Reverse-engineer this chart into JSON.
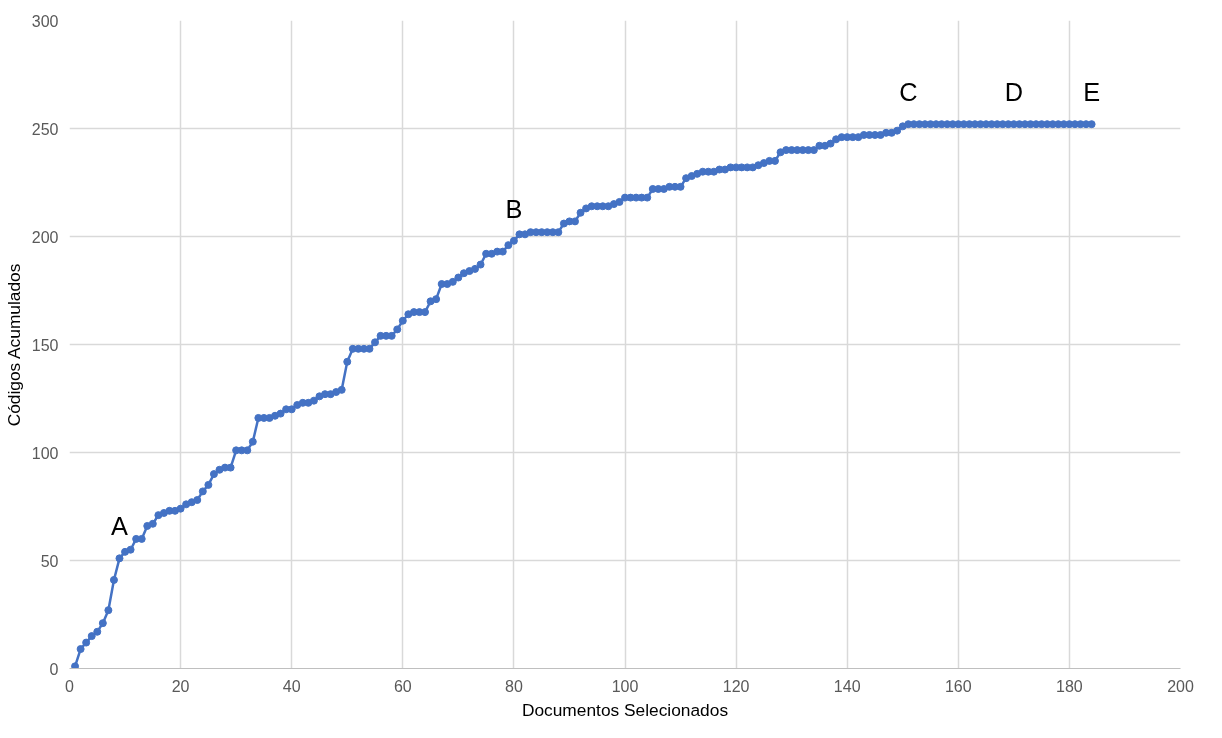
{
  "chart_data": {
    "type": "line",
    "xlabel": "Documentos Selecionados",
    "ylabel": "Códigos Acumulados",
    "x": [
      1,
      2,
      3,
      4,
      5,
      6,
      7,
      8,
      9,
      10,
      11,
      12,
      13,
      14,
      15,
      16,
      17,
      18,
      19,
      20,
      21,
      22,
      23,
      24,
      25,
      26,
      27,
      28,
      29,
      30,
      31,
      32,
      33,
      34,
      35,
      36,
      37,
      38,
      39,
      40,
      41,
      42,
      43,
      44,
      45,
      46,
      47,
      48,
      49,
      50,
      51,
      52,
      53,
      54,
      55,
      56,
      57,
      58,
      59,
      60,
      61,
      62,
      63,
      64,
      65,
      66,
      67,
      68,
      69,
      70,
      71,
      72,
      73,
      74,
      75,
      76,
      77,
      78,
      79,
      80,
      81,
      82,
      83,
      84,
      85,
      86,
      87,
      88,
      89,
      90,
      91,
      92,
      93,
      94,
      95,
      96,
      97,
      98,
      99,
      100,
      101,
      102,
      103,
      104,
      105,
      106,
      107,
      108,
      109,
      110,
      111,
      112,
      113,
      114,
      115,
      116,
      117,
      118,
      119,
      120,
      121,
      122,
      123,
      124,
      125,
      126,
      127,
      128,
      129,
      130,
      131,
      132,
      133,
      134,
      135,
      136,
      137,
      138,
      139,
      140,
      141,
      142,
      143,
      144,
      145,
      146,
      147,
      148,
      149,
      150,
      151,
      152,
      153,
      154,
      155,
      156,
      157,
      158,
      159,
      160,
      161,
      162,
      163,
      164,
      165,
      166,
      167,
      168,
      169,
      170,
      171,
      172,
      173,
      174,
      175,
      176,
      177,
      178,
      179,
      180,
      181,
      182,
      183,
      184
    ],
    "series": [
      {
        "color": "#4472c4",
        "values": [
          1,
          9,
          12,
          15,
          17,
          21,
          27,
          41,
          51,
          54,
          55,
          60,
          60,
          66,
          67,
          71,
          72,
          73,
          73,
          74,
          76,
          77,
          78,
          82,
          85,
          90,
          92,
          93,
          93,
          101,
          101,
          101,
          105,
          116,
          116,
          116,
          117,
          118,
          120,
          120,
          122,
          123,
          123,
          124,
          126,
          127,
          127,
          128,
          129,
          142,
          148,
          148,
          148,
          148,
          151,
          154,
          154,
          154,
          157,
          161,
          164,
          165,
          165,
          165,
          170,
          171,
          178,
          178,
          179,
          181,
          183,
          184,
          185,
          187,
          192,
          192,
          193,
          193,
          196,
          198,
          201,
          201,
          202,
          202,
          202,
          202,
          202,
          202,
          206,
          207,
          207,
          211,
          213,
          214,
          214,
          214,
          214,
          215,
          216,
          218,
          218,
          218,
          218,
          218,
          222,
          222,
          222,
          223,
          223,
          223,
          227,
          228,
          229,
          230,
          230,
          230,
          231,
          231,
          232,
          232,
          232,
          232,
          232,
          233,
          234,
          235,
          235,
          239,
          240,
          240,
          240,
          240,
          240,
          240,
          242,
          242,
          243,
          245,
          246,
          246,
          246,
          246,
          247,
          247,
          247,
          247,
          248,
          248,
          249,
          251,
          252,
          252,
          252,
          252,
          252,
          252,
          252,
          252,
          252,
          252,
          252,
          252,
          252,
          252,
          252,
          252,
          252,
          252,
          252,
          252,
          252,
          252,
          252,
          252,
          252,
          252,
          252,
          252,
          252,
          252,
          252,
          252,
          252,
          252
        ]
      }
    ],
    "xlim": [
      0,
      200
    ],
    "xticks": [
      0,
      20,
      40,
      60,
      80,
      100,
      120,
      140,
      160,
      180,
      200
    ],
    "ylim": [
      0,
      300
    ],
    "yticks": [
      0,
      50,
      100,
      150,
      200,
      250,
      300
    ],
    "grid": true,
    "marker": "circle",
    "line_style": "solid",
    "annotations": [
      {
        "text": "A",
        "x": 9,
        "y": 51
      },
      {
        "text": "B",
        "x": 80,
        "y": 198
      },
      {
        "text": "C",
        "x": 151,
        "y": 252
      },
      {
        "text": "D",
        "x": 170,
        "y": 252
      },
      {
        "text": "E",
        "x": 184,
        "y": 252
      }
    ]
  }
}
